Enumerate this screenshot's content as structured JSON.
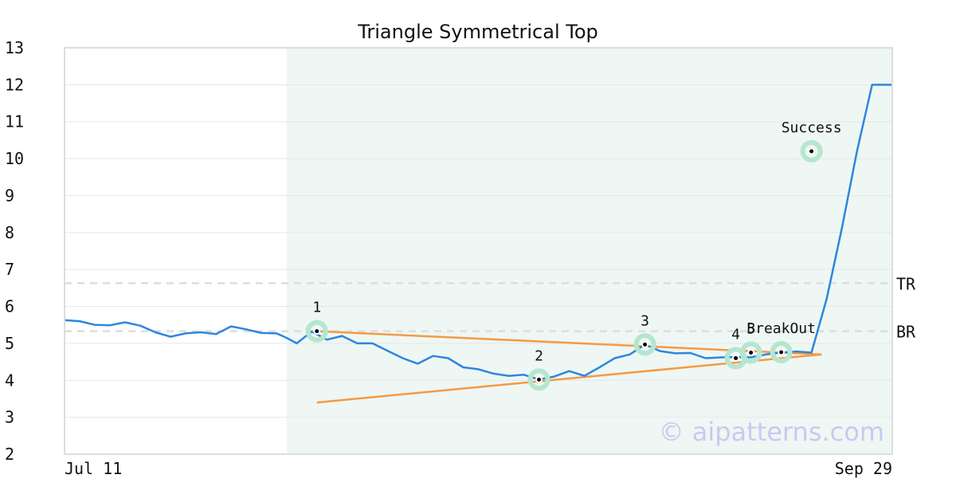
{
  "chart_data": {
    "type": "line",
    "title": "Triangle Symmetrical Top",
    "xlabel": "",
    "ylabel": "",
    "ylim": [
      2,
      13
    ],
    "yticks": [
      2,
      3,
      4,
      5,
      6,
      7,
      8,
      9,
      10,
      11,
      12,
      13
    ],
    "xlim": [
      0,
      82
    ],
    "x_tick_labels": [
      {
        "x": 0,
        "label": "Jul 11"
      },
      {
        "x": 82,
        "label": "Sep 29"
      }
    ],
    "grid": true,
    "pattern_region": {
      "x_start": 22,
      "x_end": 82,
      "color": "#eef7f3"
    },
    "series": [
      {
        "color": "#2e86de",
        "x": [
          0,
          1.5,
          3,
          4.5,
          6,
          7.5,
          9,
          10.5,
          12,
          13.5,
          15,
          16.5,
          18,
          19.5,
          21,
          22,
          23,
          24.5,
          26,
          27.5,
          29,
          30.5,
          32,
          33.5,
          35,
          36.5,
          38,
          39.5,
          41,
          42.5,
          44,
          45.5,
          47,
          48.5,
          50,
          51.5,
          53,
          54.5,
          56,
          57.5,
          59,
          60.5,
          62,
          63.5,
          65,
          66.5,
          68,
          69.5,
          71,
          72.5,
          74,
          75.5,
          77,
          78.5,
          80,
          81,
          82
        ],
        "y": [
          5.63,
          5.6,
          5.5,
          5.49,
          5.57,
          5.48,
          5.3,
          5.18,
          5.27,
          5.3,
          5.25,
          5.46,
          5.38,
          5.28,
          5.27,
          5.15,
          5.0,
          5.32,
          5.1,
          5.2,
          5.0,
          5.0,
          4.8,
          4.6,
          4.45,
          4.66,
          4.6,
          4.35,
          4.3,
          4.18,
          4.12,
          4.15,
          4.02,
          4.1,
          4.25,
          4.12,
          4.35,
          4.6,
          4.7,
          4.97,
          4.79,
          4.73,
          4.74,
          4.6,
          4.62,
          4.63,
          4.62,
          4.7,
          4.75,
          4.78,
          4.75,
          6.2,
          8.1,
          10.2,
          12.0,
          12.0,
          12.0
        ]
      }
    ],
    "trendlines": [
      {
        "color": "#f59a44",
        "x": [
          25,
          75
        ],
        "y": [
          5.33,
          4.7
        ]
      },
      {
        "color": "#f59a44",
        "x": [
          25,
          75
        ],
        "y": [
          3.4,
          4.7
        ]
      }
    ],
    "reference_lines": [
      {
        "label": "TR",
        "y": 6.63
      },
      {
        "label": "BR",
        "y": 5.33
      }
    ],
    "points": [
      {
        "label": "1",
        "x": 25,
        "y": 5.33
      },
      {
        "label": "2",
        "x": 47,
        "y": 4.02
      },
      {
        "label": "3",
        "x": 57.5,
        "y": 4.97
      },
      {
        "label": "4",
        "x": 66.5,
        "y": 4.6
      },
      {
        "label": "5",
        "x": 68,
        "y": 4.75
      },
      {
        "label": "BreakOut",
        "x": 71,
        "y": 4.76
      },
      {
        "label": "Success",
        "x": 74,
        "y": 10.2
      }
    ],
    "watermark": "© aipatterns.com"
  }
}
